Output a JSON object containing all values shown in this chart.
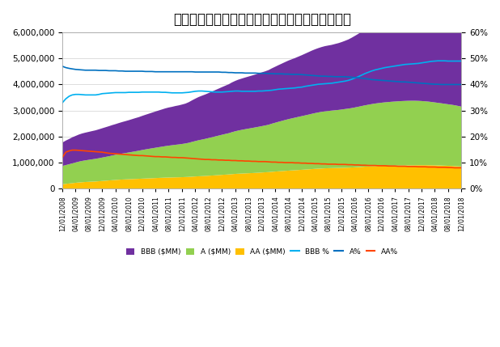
{
  "title": "米国投資適格社債市場の推移（規模・格付配分）",
  "title_fontsize": 12,
  "left_ylim": [
    0,
    6000000
  ],
  "right_ylim": [
    0,
    0.6
  ],
  "left_yticks": [
    0,
    1000000,
    2000000,
    3000000,
    4000000,
    5000000,
    6000000
  ],
  "right_yticks": [
    0.0,
    0.1,
    0.2,
    0.3,
    0.4,
    0.5,
    0.6
  ],
  "colors": {
    "BBB_area": "#7030A0",
    "A_area": "#92D050",
    "AA_area": "#FFC000",
    "BBB_pct": "#00B0F0",
    "A_pct": "#0070C0",
    "AA_pct": "#FF4500"
  },
  "dates": [
    "2008-12-01",
    "2009-01-01",
    "2009-02-01",
    "2009-03-01",
    "2009-04-01",
    "2009-05-01",
    "2009-06-01",
    "2009-07-01",
    "2009-08-01",
    "2009-09-01",
    "2009-10-01",
    "2009-11-01",
    "2009-12-01",
    "2010-01-01",
    "2010-02-01",
    "2010-03-01",
    "2010-04-01",
    "2010-05-01",
    "2010-06-01",
    "2010-07-01",
    "2010-08-01",
    "2010-09-01",
    "2010-10-01",
    "2010-11-01",
    "2010-12-01",
    "2011-01-01",
    "2011-02-01",
    "2011-03-01",
    "2011-04-01",
    "2011-05-01",
    "2011-06-01",
    "2011-07-01",
    "2011-08-01",
    "2011-09-01",
    "2011-10-01",
    "2011-11-01",
    "2011-12-01",
    "2012-01-01",
    "2012-02-01",
    "2012-03-01",
    "2012-04-01",
    "2012-05-01",
    "2012-06-01",
    "2012-07-01",
    "2012-08-01",
    "2012-09-01",
    "2012-10-01",
    "2012-11-01",
    "2012-12-01",
    "2013-01-01",
    "2013-02-01",
    "2013-03-01",
    "2013-04-01",
    "2013-05-01",
    "2013-06-01",
    "2013-07-01",
    "2013-08-01",
    "2013-09-01",
    "2013-10-01",
    "2013-11-01",
    "2013-12-01",
    "2014-01-01",
    "2014-02-01",
    "2014-03-01",
    "2014-04-01",
    "2014-05-01",
    "2014-06-01",
    "2014-07-01",
    "2014-08-01",
    "2014-09-01",
    "2014-10-01",
    "2014-11-01",
    "2014-12-01",
    "2015-01-01",
    "2015-02-01",
    "2015-03-01",
    "2015-04-01",
    "2015-05-01",
    "2015-06-01",
    "2015-07-01",
    "2015-08-01",
    "2015-09-01",
    "2015-10-01",
    "2015-11-01",
    "2015-12-01",
    "2016-01-01",
    "2016-02-01",
    "2016-03-01",
    "2016-04-01",
    "2016-05-01",
    "2016-06-01",
    "2016-07-01",
    "2016-08-01",
    "2016-09-01",
    "2016-10-01",
    "2016-11-01",
    "2016-12-01",
    "2017-01-01",
    "2017-02-01",
    "2017-03-01",
    "2017-04-01",
    "2017-05-01",
    "2017-06-01",
    "2017-07-01",
    "2017-08-01",
    "2017-09-01",
    "2017-10-01",
    "2017-11-01",
    "2017-12-01",
    "2018-01-01",
    "2018-02-01",
    "2018-03-01",
    "2018-04-01",
    "2018-05-01",
    "2018-06-01",
    "2018-07-01",
    "2018-08-01",
    "2018-09-01",
    "2018-10-01",
    "2018-11-01",
    "2018-12-01"
  ],
  "BBB_MM": [
    900000,
    940000,
    970000,
    1000000,
    1020000,
    1040000,
    1055000,
    1065000,
    1075000,
    1085000,
    1095000,
    1110000,
    1125000,
    1140000,
    1155000,
    1168000,
    1180000,
    1195000,
    1210000,
    1225000,
    1240000,
    1258000,
    1275000,
    1290000,
    1310000,
    1330000,
    1350000,
    1370000,
    1390000,
    1410000,
    1430000,
    1450000,
    1465000,
    1475000,
    1490000,
    1500000,
    1515000,
    1530000,
    1560000,
    1595000,
    1630000,
    1660000,
    1685000,
    1705000,
    1730000,
    1755000,
    1780000,
    1805000,
    1830000,
    1855000,
    1880000,
    1910000,
    1935000,
    1955000,
    1970000,
    1985000,
    2000000,
    2015000,
    2030000,
    2050000,
    2065000,
    2080000,
    2100000,
    2125000,
    2150000,
    2175000,
    2200000,
    2225000,
    2250000,
    2270000,
    2290000,
    2315000,
    2340000,
    2370000,
    2400000,
    2425000,
    2450000,
    2470000,
    2490000,
    2505000,
    2515000,
    2525000,
    2545000,
    2565000,
    2590000,
    2620000,
    2655000,
    2700000,
    2750000,
    2800000,
    2855000,
    2910000,
    2960000,
    3010000,
    3060000,
    3100000,
    3140000,
    3175000,
    3205000,
    3235000,
    3265000,
    3295000,
    3325000,
    3355000,
    3385000,
    3415000,
    3445000,
    3475000,
    3510000,
    3550000,
    3590000,
    3630000,
    3670000,
    3710000,
    3745000,
    3775000,
    3810000,
    3845000,
    3875000,
    3920000,
    3970000
  ],
  "A_MM": [
    700000,
    720000,
    740000,
    760000,
    780000,
    800000,
    818000,
    832000,
    845000,
    858000,
    870000,
    885000,
    900000,
    915000,
    930000,
    948000,
    965000,
    982000,
    998000,
    1012000,
    1028000,
    1045000,
    1062000,
    1080000,
    1100000,
    1118000,
    1135000,
    1150000,
    1165000,
    1180000,
    1195000,
    1210000,
    1225000,
    1238000,
    1250000,
    1262000,
    1275000,
    1290000,
    1310000,
    1335000,
    1360000,
    1385000,
    1405000,
    1425000,
    1448000,
    1472000,
    1495000,
    1518000,
    1540000,
    1563000,
    1585000,
    1612000,
    1638000,
    1660000,
    1680000,
    1698000,
    1715000,
    1732000,
    1748000,
    1765000,
    1782000,
    1800000,
    1820000,
    1848000,
    1875000,
    1902000,
    1928000,
    1953000,
    1978000,
    2000000,
    2020000,
    2042000,
    2062000,
    2082000,
    2102000,
    2122000,
    2142000,
    2160000,
    2175000,
    2188000,
    2198000,
    2208000,
    2218000,
    2228000,
    2240000,
    2255000,
    2268000,
    2282000,
    2300000,
    2318000,
    2338000,
    2355000,
    2372000,
    2390000,
    2405000,
    2418000,
    2430000,
    2440000,
    2448000,
    2456000,
    2462000,
    2468000,
    2473000,
    2477000,
    2480000,
    2480000,
    2478000,
    2473000,
    2465000,
    2455000,
    2445000,
    2432000,
    2418000,
    2405000,
    2392000,
    2378000,
    2365000,
    2352000,
    2338000,
    2320000,
    2300000
  ],
  "AA_MM": [
    170000,
    185000,
    198000,
    210000,
    225000,
    238000,
    248000,
    256000,
    263000,
    270000,
    276000,
    285000,
    295000,
    305000,
    315000,
    324000,
    333000,
    342000,
    350000,
    356000,
    362000,
    368000,
    373000,
    378000,
    384000,
    390000,
    395000,
    400000,
    406000,
    412000,
    418000,
    423000,
    427000,
    430000,
    434000,
    437000,
    441000,
    446000,
    452000,
    460000,
    468000,
    475000,
    481000,
    488000,
    496000,
    504000,
    512000,
    521000,
    530000,
    538000,
    546000,
    556000,
    566000,
    574000,
    580000,
    586000,
    592000,
    598000,
    605000,
    612000,
    620000,
    628000,
    636000,
    646000,
    656000,
    665000,
    674000,
    683000,
    692000,
    700000,
    708000,
    716000,
    724000,
    733000,
    742000,
    751000,
    760000,
    768000,
    775000,
    781000,
    786000,
    790000,
    793000,
    796000,
    800000,
    804000,
    808000,
    813000,
    820000,
    827000,
    836000,
    845000,
    852000,
    858000,
    864000,
    868000,
    872000,
    876000,
    879000,
    882000,
    885000,
    888000,
    891000,
    893000,
    895000,
    897000,
    899000,
    900000,
    901000,
    901000,
    900000,
    898000,
    895000,
    891000,
    887000,
    882000,
    877000,
    872000,
    866000,
    858000,
    850000
  ],
  "BBB_pct": [
    0.33,
    0.345,
    0.355,
    0.36,
    0.362,
    0.362,
    0.361,
    0.36,
    0.36,
    0.36,
    0.36,
    0.362,
    0.365,
    0.366,
    0.367,
    0.368,
    0.369,
    0.369,
    0.369,
    0.369,
    0.37,
    0.37,
    0.37,
    0.37,
    0.371,
    0.371,
    0.371,
    0.371,
    0.371,
    0.371,
    0.37,
    0.37,
    0.369,
    0.368,
    0.368,
    0.368,
    0.368,
    0.369,
    0.37,
    0.372,
    0.374,
    0.375,
    0.375,
    0.374,
    0.373,
    0.372,
    0.371,
    0.371,
    0.371,
    0.372,
    0.373,
    0.374,
    0.375,
    0.375,
    0.374,
    0.374,
    0.374,
    0.374,
    0.374,
    0.375,
    0.375,
    0.376,
    0.377,
    0.378,
    0.38,
    0.382,
    0.383,
    0.384,
    0.385,
    0.386,
    0.387,
    0.389,
    0.39,
    0.393,
    0.395,
    0.397,
    0.399,
    0.401,
    0.402,
    0.403,
    0.404,
    0.405,
    0.407,
    0.409,
    0.411,
    0.413,
    0.416,
    0.42,
    0.425,
    0.43,
    0.436,
    0.442,
    0.447,
    0.452,
    0.456,
    0.459,
    0.462,
    0.465,
    0.467,
    0.469,
    0.471,
    0.473,
    0.475,
    0.477,
    0.478,
    0.479,
    0.48,
    0.481,
    0.483,
    0.485,
    0.487,
    0.489,
    0.49,
    0.491,
    0.491,
    0.491,
    0.49,
    0.49,
    0.49,
    0.49,
    0.49
  ],
  "A_pct": [
    0.47,
    0.465,
    0.462,
    0.46,
    0.458,
    0.457,
    0.456,
    0.455,
    0.455,
    0.455,
    0.455,
    0.454,
    0.454,
    0.454,
    0.453,
    0.453,
    0.453,
    0.452,
    0.452,
    0.451,
    0.451,
    0.451,
    0.451,
    0.451,
    0.451,
    0.45,
    0.45,
    0.45,
    0.449,
    0.449,
    0.449,
    0.449,
    0.449,
    0.449,
    0.449,
    0.449,
    0.449,
    0.449,
    0.449,
    0.449,
    0.448,
    0.448,
    0.448,
    0.448,
    0.448,
    0.448,
    0.448,
    0.448,
    0.447,
    0.447,
    0.446,
    0.446,
    0.445,
    0.445,
    0.445,
    0.444,
    0.444,
    0.444,
    0.444,
    0.443,
    0.443,
    0.443,
    0.442,
    0.442,
    0.441,
    0.441,
    0.441,
    0.44,
    0.44,
    0.439,
    0.439,
    0.439,
    0.438,
    0.437,
    0.436,
    0.435,
    0.434,
    0.433,
    0.432,
    0.432,
    0.431,
    0.431,
    0.43,
    0.43,
    0.43,
    0.43,
    0.429,
    0.428,
    0.427,
    0.426,
    0.424,
    0.423,
    0.421,
    0.419,
    0.418,
    0.417,
    0.416,
    0.415,
    0.414,
    0.413,
    0.412,
    0.411,
    0.41,
    0.41,
    0.409,
    0.408,
    0.407,
    0.406,
    0.405,
    0.404,
    0.403,
    0.402,
    0.401,
    0.401,
    0.4,
    0.4,
    0.4,
    0.4,
    0.4,
    0.4,
    0.4
  ],
  "AA_pct": [
    0.12,
    0.14,
    0.145,
    0.148,
    0.148,
    0.147,
    0.146,
    0.145,
    0.144,
    0.143,
    0.142,
    0.141,
    0.14,
    0.138,
    0.136,
    0.135,
    0.134,
    0.133,
    0.132,
    0.131,
    0.13,
    0.129,
    0.128,
    0.127,
    0.127,
    0.126,
    0.125,
    0.124,
    0.123,
    0.123,
    0.122,
    0.122,
    0.121,
    0.12,
    0.12,
    0.119,
    0.119,
    0.118,
    0.117,
    0.116,
    0.115,
    0.114,
    0.113,
    0.112,
    0.112,
    0.111,
    0.111,
    0.11,
    0.11,
    0.109,
    0.109,
    0.108,
    0.108,
    0.107,
    0.107,
    0.106,
    0.106,
    0.105,
    0.105,
    0.104,
    0.104,
    0.104,
    0.103,
    0.102,
    0.102,
    0.101,
    0.101,
    0.1,
    0.1,
    0.1,
    0.099,
    0.099,
    0.098,
    0.098,
    0.097,
    0.097,
    0.096,
    0.096,
    0.095,
    0.095,
    0.094,
    0.094,
    0.094,
    0.093,
    0.093,
    0.093,
    0.092,
    0.092,
    0.091,
    0.091,
    0.09,
    0.09,
    0.089,
    0.089,
    0.089,
    0.088,
    0.088,
    0.088,
    0.087,
    0.087,
    0.087,
    0.086,
    0.086,
    0.086,
    0.085,
    0.085,
    0.085,
    0.084,
    0.084,
    0.084,
    0.083,
    0.083,
    0.083,
    0.082,
    0.082,
    0.082,
    0.081,
    0.081,
    0.08,
    0.08,
    0.08
  ],
  "xtick_dates": [
    "2008-12-01",
    "2009-04-01",
    "2009-08-01",
    "2009-12-01",
    "2010-04-01",
    "2010-08-01",
    "2010-12-01",
    "2011-04-01",
    "2011-08-01",
    "2011-12-01",
    "2012-04-01",
    "2012-08-01",
    "2012-12-01",
    "2013-04-01",
    "2013-08-01",
    "2013-12-01",
    "2014-04-01",
    "2014-08-01",
    "2014-12-01",
    "2015-04-01",
    "2015-08-01",
    "2015-12-01",
    "2016-04-01",
    "2016-08-01",
    "2016-12-01",
    "2017-04-01",
    "2017-08-01",
    "2017-12-01",
    "2018-04-01",
    "2018-08-01",
    "2018-12-01"
  ]
}
